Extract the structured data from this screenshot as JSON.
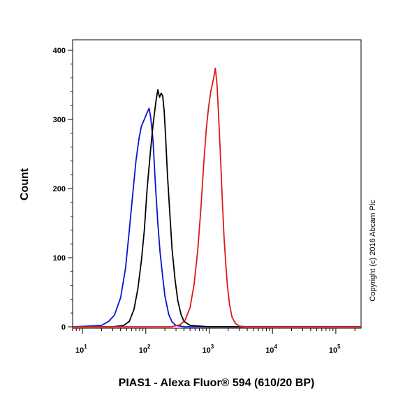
{
  "chart_data": {
    "type": "line",
    "title": "",
    "xlabel": "PIAS1 - Alexa Fluor® 594 (610/20 BP)",
    "ylabel": "Count",
    "x_scale": "log",
    "xlim": [
      7,
      250000
    ],
    "ylim": [
      0,
      415
    ],
    "y_ticks": [
      0,
      100,
      200,
      300,
      400
    ],
    "x_ticks": [
      {
        "value": 10,
        "base": "10",
        "exp": "1"
      },
      {
        "value": 100,
        "base": "10",
        "exp": "2"
      },
      {
        "value": 1000,
        "base": "10",
        "exp": "3"
      },
      {
        "value": 10000,
        "base": "10",
        "exp": "4"
      },
      {
        "value": 100000,
        "base": "10",
        "exp": "5"
      }
    ],
    "annotation": "Copyright (c) 2016 Abcam Plc",
    "colors": {
      "blue": "#0a14d0",
      "black": "#000000",
      "red": "#e01818"
    },
    "series": [
      {
        "color": "blue",
        "x": [
          7,
          20,
          26,
          32,
          40,
          48,
          55,
          62,
          70,
          78,
          85,
          95,
          105,
          113,
          120,
          130,
          142,
          155,
          168,
          185,
          200,
          230,
          260,
          300,
          400,
          1000,
          250000
        ],
        "y": [
          0,
          2,
          8,
          17,
          42,
          85,
          140,
          190,
          240,
          272,
          290,
          300,
          310,
          316,
          302,
          270,
          205,
          150,
          108,
          72,
          45,
          18,
          7,
          2,
          0,
          0,
          0
        ]
      },
      {
        "color": "black",
        "x": [
          7,
          30,
          45,
          55,
          65,
          75,
          85,
          95,
          105,
          118,
          130,
          145,
          155,
          165,
          175,
          185,
          195,
          205,
          220,
          240,
          260,
          290,
          320,
          360,
          400,
          500,
          1000,
          250000
        ],
        "y": [
          0,
          0,
          2,
          8,
          25,
          55,
          95,
          140,
          200,
          252,
          292,
          327,
          343,
          332,
          338,
          334,
          312,
          278,
          220,
          162,
          112,
          68,
          38,
          18,
          8,
          2,
          0,
          0
        ]
      },
      {
        "color": "red",
        "x": [
          7,
          250,
          350,
          420,
          500,
          580,
          660,
          740,
          820,
          900,
          980,
          1060,
          1120,
          1180,
          1250,
          1330,
          1420,
          1520,
          1620,
          1720,
          1840,
          1950,
          2100,
          2300,
          2600,
          3000,
          4000,
          250000
        ],
        "y": [
          0,
          0,
          3,
          10,
          28,
          62,
          110,
          170,
          235,
          285,
          318,
          340,
          350,
          360,
          374,
          352,
          300,
          240,
          180,
          130,
          88,
          58,
          32,
          14,
          5,
          1,
          0,
          0
        ]
      }
    ]
  }
}
